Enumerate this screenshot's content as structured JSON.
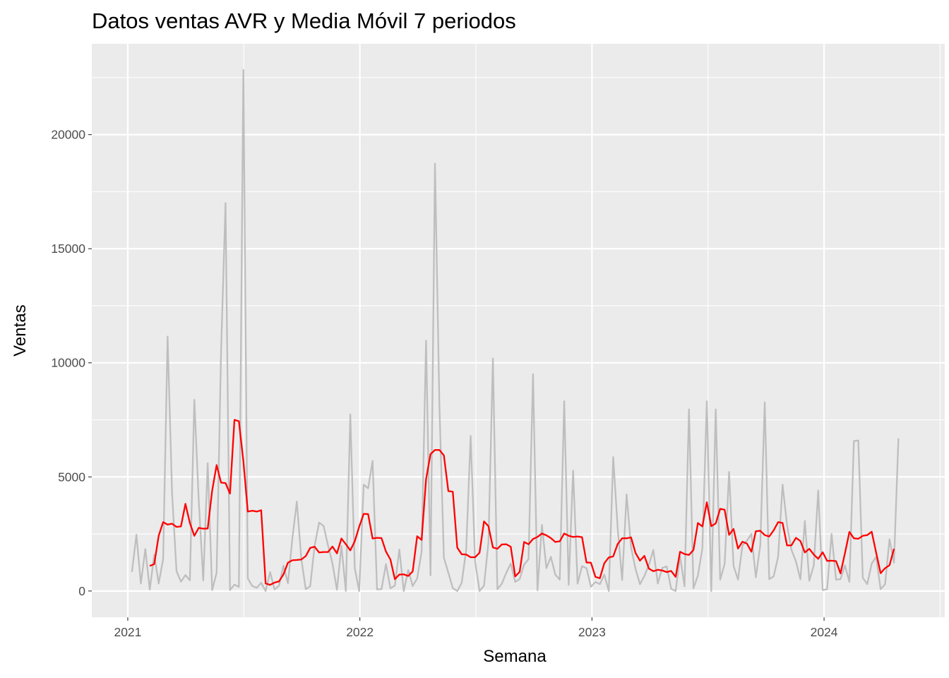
{
  "chart_data": {
    "type": "line",
    "title": "Datos ventas AVR y Media Móvil 7 periodos",
    "xlabel": "Semana",
    "ylabel": "Ventas",
    "x_tick_labels": [
      "2021",
      "2022",
      "2023",
      "2024"
    ],
    "x_tick_years": [
      2021,
      2022,
      2023,
      2024
    ],
    "y_tick_labels": [
      "0",
      "5000",
      "10000",
      "15000",
      "20000"
    ],
    "y_tick_values": [
      0,
      5000,
      10000,
      15000,
      20000
    ],
    "xlim": [
      2020.845,
      2024.52
    ],
    "ylim": [
      -1150,
      23980
    ],
    "x_start": 2021.018,
    "x_step": 0.0192,
    "grid": true,
    "series": [
      {
        "name": "Ventas",
        "color": "#bebebe",
        "values": [
          830,
          2470,
          330,
          1840,
          60,
          1590,
          330,
          1390,
          11150,
          4300,
          870,
          410,
          700,
          470,
          8380,
          3920,
          460,
          5600,
          40,
          800,
          10500,
          17000,
          40,
          280,
          180,
          22840,
          550,
          220,
          140,
          360,
          0,
          830,
          70,
          230,
          1110,
          340,
          2310,
          3920,
          1420,
          80,
          210,
          1990,
          3000,
          2850,
          2000,
          1200,
          50,
          1980,
          0,
          7740,
          1000,
          0,
          4660,
          4500,
          5700,
          70,
          80,
          1180,
          120,
          240,
          1820,
          0,
          920,
          220,
          550,
          1720,
          10970,
          690,
          18730,
          8100,
          1460,
          800,
          130,
          0,
          360,
          1800,
          6800,
          1300,
          0,
          240,
          2130,
          10190,
          80,
          320,
          800,
          1200,
          400,
          520,
          1160,
          1400,
          9500,
          30,
          2900,
          1000,
          1500,
          720,
          500,
          8320,
          270,
          5280,
          320,
          1090,
          1000,
          180,
          400,
          300,
          720,
          0,
          5870,
          2750,
          480,
          4230,
          1920,
          970,
          300,
          660,
          1150,
          1800,
          330,
          1010,
          1080,
          100,
          0,
          1520,
          200,
          7960,
          120,
          680,
          1860,
          8320,
          0,
          7960,
          500,
          1180,
          5220,
          1100,
          500,
          2000,
          2200,
          2500,
          600,
          2000,
          8270,
          520,
          640,
          1500,
          4660,
          2900,
          1800,
          1300,
          510,
          3070,
          450,
          1120,
          4400,
          40,
          80,
          2500,
          500,
          520,
          1120,
          400,
          6570,
          6600,
          580,
          300,
          1200,
          1500,
          80,
          300,
          2270,
          1240,
          6690
        ]
      },
      {
        "name": "Media Móvil 7 periodos",
        "color": "#ff0000",
        "offset": 4,
        "values": [
          1100,
          1180,
          2420,
          3020,
          2910,
          2950,
          2810,
          2830,
          3820,
          2980,
          2420,
          2770,
          2730,
          2740,
          4400,
          5520,
          4750,
          4730,
          4270,
          7500,
          7440,
          5700,
          3480,
          3520,
          3480,
          3540,
          330,
          270,
          370,
          420,
          730,
          1240,
          1350,
          1360,
          1380,
          1530,
          1890,
          1940,
          1690,
          1710,
          1710,
          1950,
          1650,
          2300,
          2050,
          1780,
          2180,
          2820,
          3380,
          3370,
          2300,
          2330,
          2320,
          1730,
          1380,
          520,
          720,
          730,
          660,
          860,
          2400,
          2240,
          4900,
          6000,
          6180,
          6180,
          5940,
          4380,
          4350,
          1900,
          1610,
          1600,
          1480,
          1480,
          1680,
          3050,
          2840,
          1910,
          1850,
          2040,
          2050,
          1940,
          640,
          840,
          2150,
          2050,
          2280,
          2370,
          2520,
          2440,
          2320,
          2150,
          2180,
          2520,
          2420,
          2370,
          2390,
          2360,
          1250,
          1240,
          620,
          560,
          1220,
          1470,
          1520,
          2060,
          2310,
          2310,
          2350,
          1670,
          1330,
          1540,
          980,
          870,
          930,
          900,
          830,
          880,
          620,
          1720,
          1620,
          1580,
          1800,
          2980,
          2830,
          3890,
          2840,
          2960,
          3600,
          3560,
          2460,
          2720,
          1860,
          2160,
          2080,
          1720,
          2620,
          2640,
          2450,
          2390,
          2660,
          3020,
          2980,
          2000,
          2000,
          2330,
          2190,
          1690,
          1850,
          1600,
          1410,
          1700,
          1320,
          1330,
          1310,
          770,
          1660,
          2590,
          2310,
          2290,
          2420,
          2450,
          2600,
          1680,
          780,
          1000,
          1130,
          1850
        ]
      }
    ]
  }
}
